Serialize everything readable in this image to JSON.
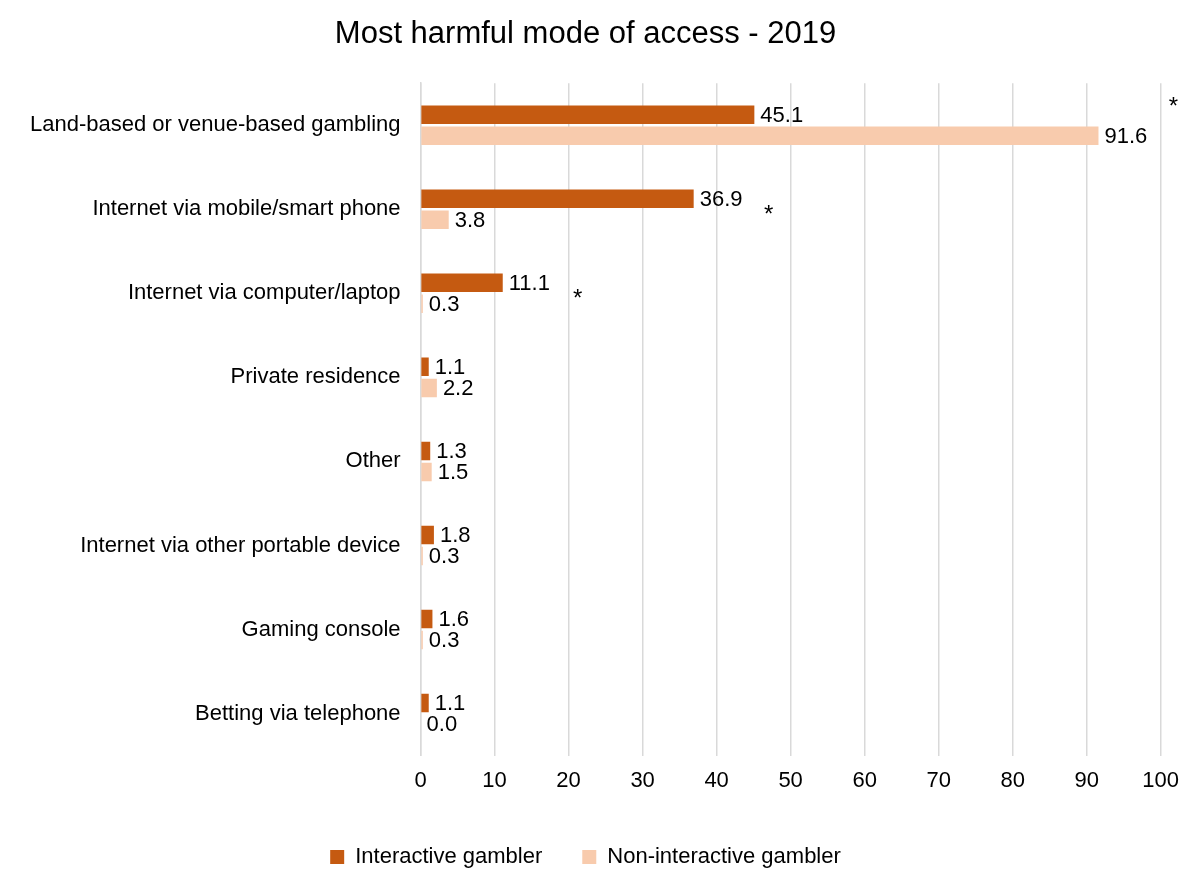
{
  "chart_data": {
    "type": "bar",
    "orientation": "horizontal",
    "title": "Most harmful mode of access - 2019",
    "categories": [
      "Land-based or venue-based gambling",
      "Internet via mobile/smart phone",
      "Internet via computer/laptop",
      "Private residence",
      "Other",
      "Internet via other portable device",
      "Gaming console",
      "Betting via telephone"
    ],
    "series": [
      {
        "name": "Interactive gambler",
        "color": "#c55a11",
        "values": [
          45.1,
          36.9,
          11.1,
          1.1,
          1.3,
          1.8,
          1.6,
          1.1
        ],
        "value_labels": [
          "45.1",
          "36.9",
          "11.1",
          "1.1",
          "1.3",
          "1.8",
          "1.6",
          "1.1"
        ]
      },
      {
        "name": "Non-interactive gambler",
        "color": "#f8cbad",
        "values": [
          91.6,
          3.8,
          0.3,
          2.2,
          1.5,
          0.3,
          0.3,
          0.0
        ],
        "value_labels": [
          "91.6",
          "3.8",
          "0.3",
          "2.2",
          "1.5",
          "0.3",
          "0.3",
          "0.0"
        ]
      }
    ],
    "xlim": [
      0,
      100
    ],
    "xticks": [
      0,
      10,
      20,
      30,
      40,
      50,
      60,
      70,
      80,
      90,
      100
    ],
    "grid": "x",
    "legend": "bottom",
    "annotations": [
      "*",
      "*",
      "*"
    ]
  }
}
